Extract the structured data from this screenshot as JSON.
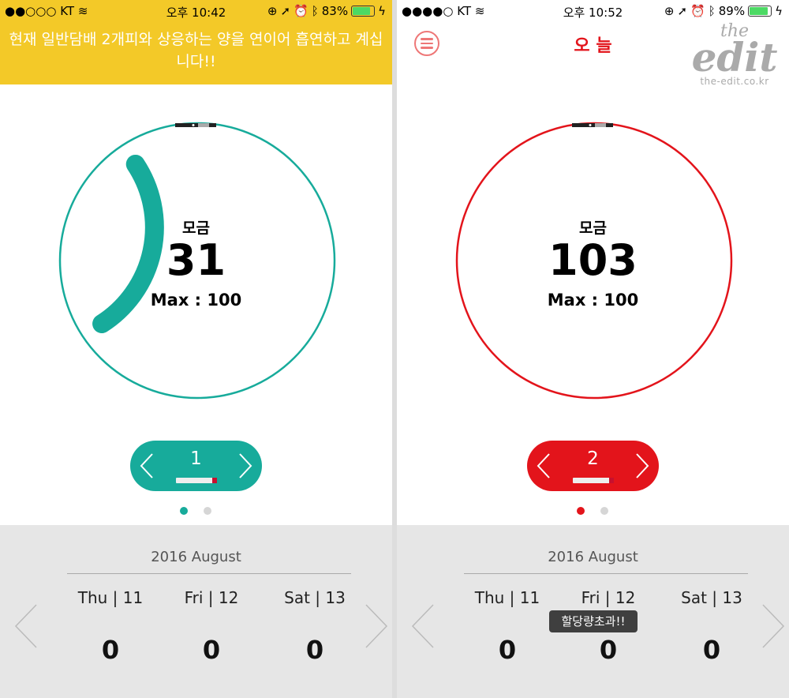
{
  "screens": [
    {
      "status": {
        "signal": "●●○○○",
        "carrier": "KT",
        "time": "오후 10:42",
        "battery": "83%",
        "battery_level": 0.83
      },
      "banner": "현재 일반담배 2개피와 상응하는 양을 연이어 흡연하고 계십니다!!",
      "accent": "#17ab9b",
      "gauge": {
        "label": "모금",
        "value": "31",
        "max_text": "Max : 100",
        "value_num": 31,
        "max_num": 100
      },
      "selector": {
        "value": "1"
      },
      "pager": {
        "active": 0,
        "count": 2
      },
      "calendar": {
        "month": "2016  August",
        "days": [
          {
            "label": "Thu | 11",
            "value": "0"
          },
          {
            "label": "Fri | 12",
            "value": "0"
          },
          {
            "label": "Sat | 13",
            "value": "0"
          }
        ]
      }
    },
    {
      "status": {
        "signal": "●●●●○",
        "carrier": "KT",
        "time": "오후 10:52",
        "battery": "89%",
        "battery_level": 0.89
      },
      "title": "오 늘",
      "accent": "#e3141b",
      "gauge": {
        "label": "모금",
        "value": "103",
        "max_text": "Max : 100",
        "value_num": 103,
        "max_num": 100
      },
      "selector": {
        "value": "2"
      },
      "pager": {
        "active": 0,
        "count": 2
      },
      "calendar": {
        "month": "2016  August",
        "days": [
          {
            "label": "Thu | 11",
            "value": "0"
          },
          {
            "label": "Fri | 12",
            "value": "0"
          },
          {
            "label": "Sat | 13",
            "value": "0"
          }
        ]
      },
      "toast": "할당량초과!!",
      "watermark": {
        "line1": "the",
        "line2": "edit",
        "line3": "the-edit.co.kr"
      }
    }
  ]
}
